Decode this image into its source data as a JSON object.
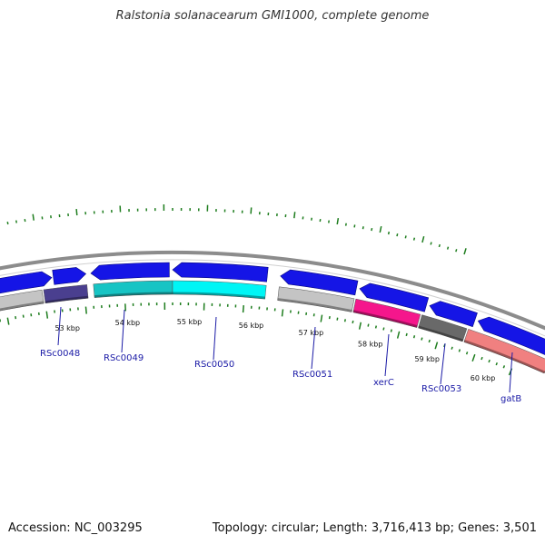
{
  "title": "Ralstonia solanacearum GMI1000, complete genome",
  "footer": {
    "accession": "Accession: NC_003295",
    "summary": "Topology: circular; Length: 3,716,413 bp; Genes: 3,501"
  },
  "colors": {
    "strand_arrow": "#1515e6",
    "backbone": "#8c8c8c",
    "tick": "#1e7d1e",
    "label_line": "#1a1aa6"
  },
  "scale": {
    "unit": "kbp",
    "labels": [
      {
        "kb": 53,
        "text": "53 kbp"
      },
      {
        "kb": 54,
        "text": "54 kbp"
      },
      {
        "kb": 55,
        "text": "55 kbp"
      },
      {
        "kb": 56,
        "text": "56 kbp"
      },
      {
        "kb": 57,
        "text": "57 kbp"
      },
      {
        "kb": 58,
        "text": "58 kbp"
      },
      {
        "kb": 59,
        "text": "59 kbp"
      },
      {
        "kb": 60,
        "text": "60 kbp"
      }
    ]
  },
  "genes": [
    {
      "label": "RSc0048",
      "color": "#4a3f8f"
    },
    {
      "label": "RSc0049",
      "color": "#17c4c4"
    },
    {
      "label": "RSc0050",
      "color": "#00f5f5"
    },
    {
      "label": "RSc0051",
      "color": "#c4c4c4"
    },
    {
      "label": "xerC",
      "color": "#f5168c"
    },
    {
      "label": "RSc0053",
      "color": "#696969"
    },
    {
      "label": "gatB",
      "color": "#f08080"
    }
  ]
}
